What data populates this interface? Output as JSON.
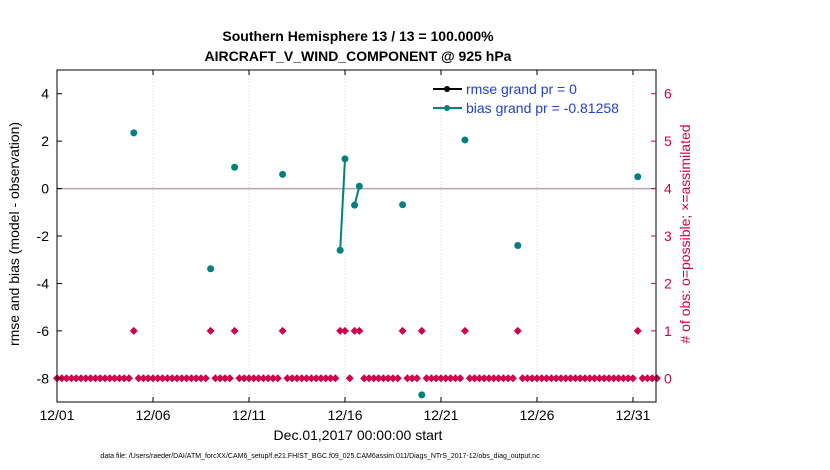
{
  "chart_data": {
    "type": "scatter",
    "title_line1": "Southern Hemisphere 13 / 13 = 100.000%",
    "title_line2": "AIRCRAFT_V_WIND_COMPONENT @ 925 hPa",
    "xlabel": "Dec.01,2017 00:00:00 start",
    "ylabel": "rmse and bias (model - observation)",
    "ylabel_right": "# of obs: o=possible; ×=assimilated",
    "xlim": [
      1,
      32.2
    ],
    "ylim": [
      -9,
      5
    ],
    "ylim_right": [
      -0.5,
      6.5
    ],
    "x_ticks": [
      1,
      6,
      11,
      16,
      21,
      26,
      31
    ],
    "x_tick_labels": [
      "12/01",
      "12/06",
      "12/11",
      "12/16",
      "12/21",
      "12/26",
      "12/31"
    ],
    "y_ticks": [
      -8,
      -6,
      -4,
      -2,
      0,
      2,
      4
    ],
    "y_tick_labels": [
      "-8",
      "-6",
      "-4",
      "-2",
      "0",
      "2",
      "4"
    ],
    "y_right_ticks": [
      0,
      1,
      2,
      3,
      4,
      5,
      6
    ],
    "y_right_tick_labels": [
      "0",
      "1",
      "2",
      "3",
      "4",
      "5",
      "6"
    ],
    "zero_line": 0,
    "legend": [
      {
        "label": "rmse grand pr = 0",
        "color": "#000000"
      },
      {
        "label": "bias grand pr = -0.81258",
        "color": "#00807f"
      }
    ],
    "bias_points": [
      {
        "x": 5.0,
        "y": 2.35
      },
      {
        "x": 9.0,
        "y": -3.38
      },
      {
        "x": 10.25,
        "y": 0.9
      },
      {
        "x": 12.75,
        "y": 0.6
      },
      {
        "x": 15.75,
        "y": -2.6
      },
      {
        "x": 16.0,
        "y": 1.25
      },
      {
        "x": 16.5,
        "y": -0.7
      },
      {
        "x": 16.75,
        "y": 0.1
      },
      {
        "x": 19.0,
        "y": -0.68
      },
      {
        "x": 20.0,
        "y": -8.7
      },
      {
        "x": 22.25,
        "y": 2.05
      },
      {
        "x": 25.0,
        "y": -2.4
      },
      {
        "x": 31.25,
        "y": 0.5
      }
    ],
    "bias_line_segments": [
      [
        {
          "x": 15.75,
          "y": -2.6
        },
        {
          "x": 16.0,
          "y": 1.25
        }
      ],
      [
        {
          "x": 16.5,
          "y": -0.7
        },
        {
          "x": 16.75,
          "y": 0.1
        }
      ]
    ],
    "obs_count_one_x": [
      5.0,
      9.0,
      10.25,
      12.75,
      15.75,
      16.0,
      16.5,
      16.75,
      19.0,
      20.0,
      22.25,
      25.0,
      31.25
    ],
    "obs_count_zero_start": 1.0,
    "obs_count_zero_end": 32.25,
    "obs_count_step": 0.25,
    "footnote": "data file: /Users/raeder/DAI/ATM_forcXX/CAM6_setup/f.e21.FHIST_BGC.f09_025.CAM6assim.011/Diags_NTrS_2017-12/obs_diag_output.nc"
  },
  "colors": {
    "bias": "#00807f",
    "rmse": "#000000",
    "obs": "#d0004f",
    "zero_line": "#b3a6ae",
    "axis": "#000000",
    "grid": "#cfcfcf"
  }
}
